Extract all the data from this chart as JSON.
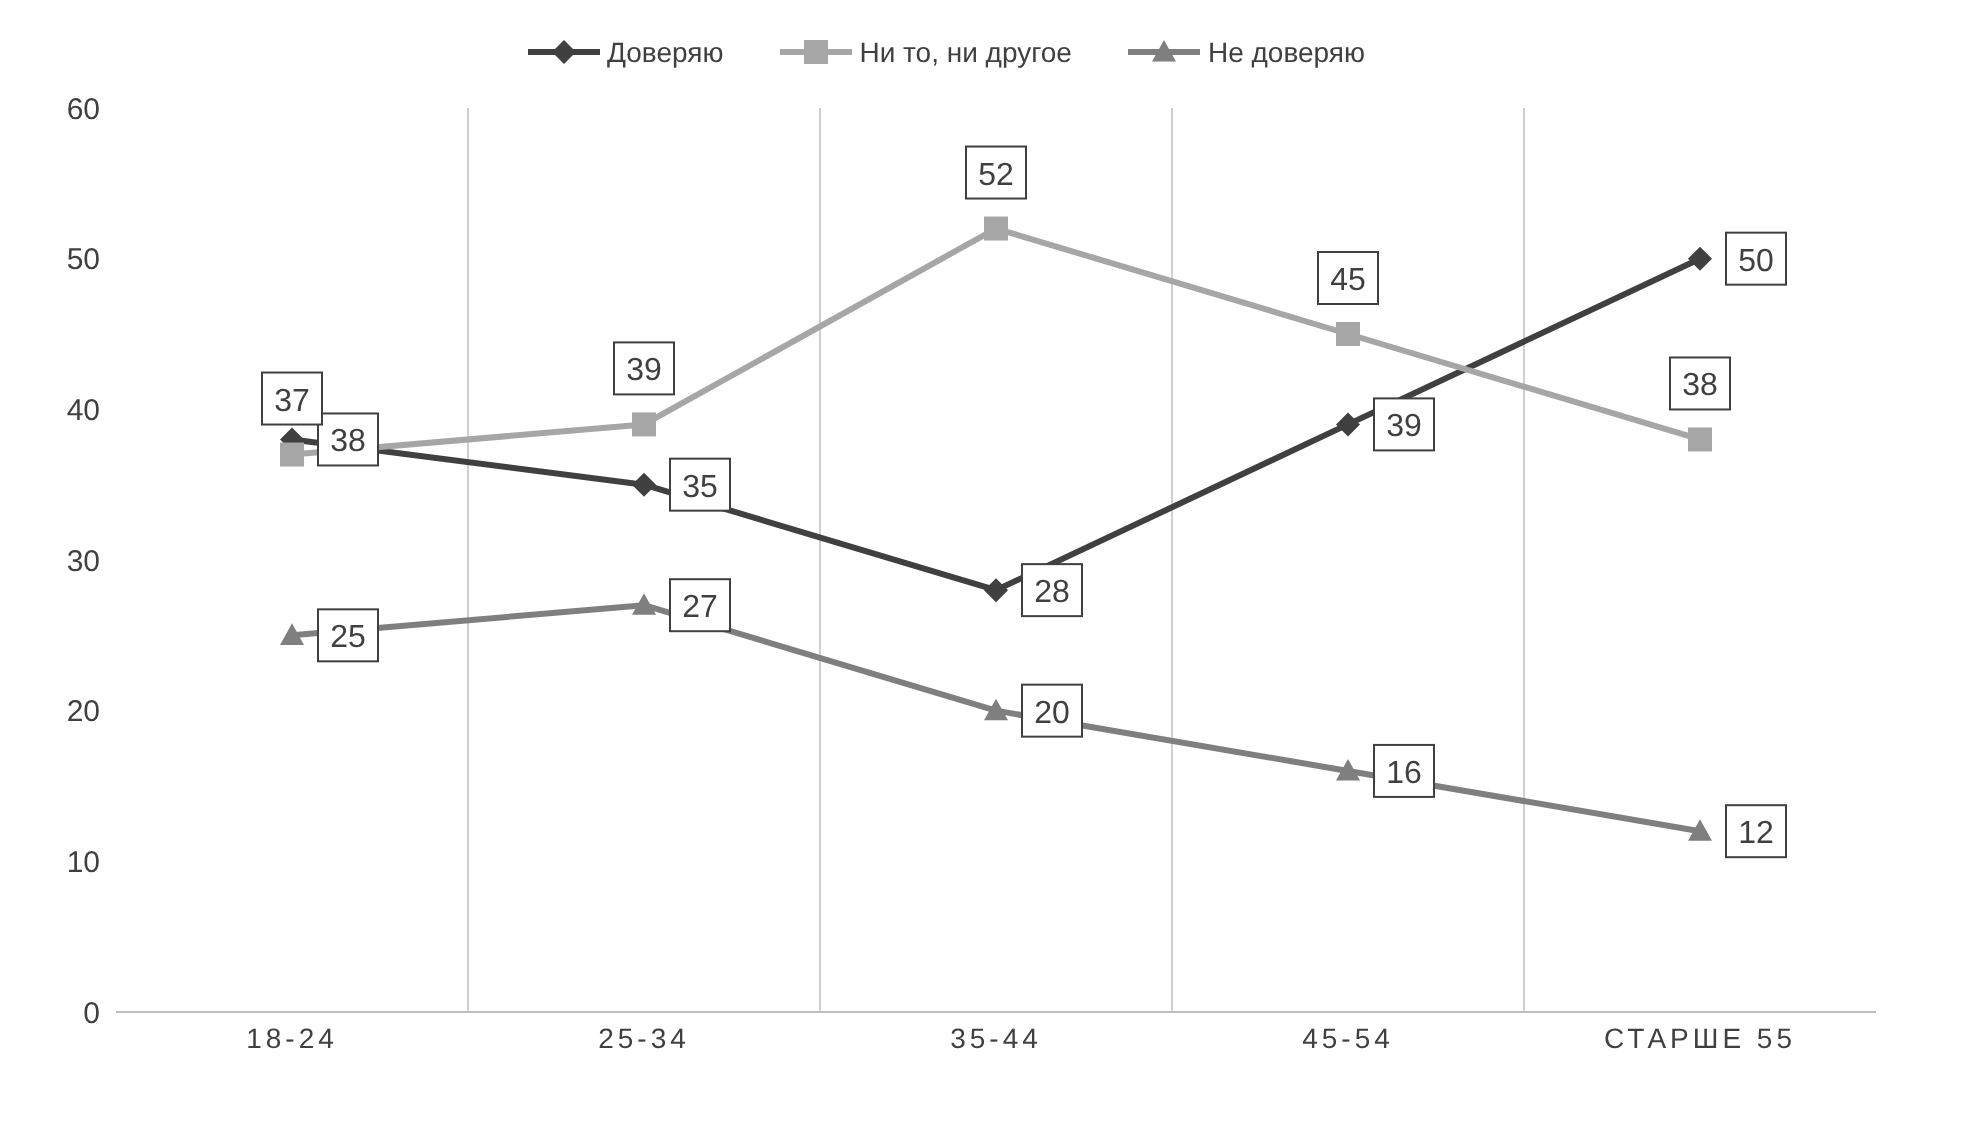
{
  "chart_data": {
    "type": "line",
    "categories": [
      "18-24",
      "25-34",
      "35-44",
      "45-54",
      "СТАРШЕ 55"
    ],
    "series": [
      {
        "name": "Доверяю",
        "color": "#404040",
        "marker": "diamond",
        "values": [
          38,
          35,
          28,
          39,
          50
        ]
      },
      {
        "name": "Ни то, ни другое",
        "color": "#a6a6a6",
        "marker": "square",
        "values": [
          37,
          39,
          52,
          45,
          38
        ]
      },
      {
        "name": "Не доверяю",
        "color": "#7f7f7f",
        "marker": "triangle",
        "values": [
          25,
          27,
          20,
          16,
          12
        ]
      }
    ],
    "ylim": [
      0,
      60
    ],
    "yticks": [
      0,
      10,
      20,
      30,
      40,
      50,
      60
    ],
    "grid": "x",
    "legend": "top",
    "data_labels": true,
    "line_style": "solid"
  }
}
